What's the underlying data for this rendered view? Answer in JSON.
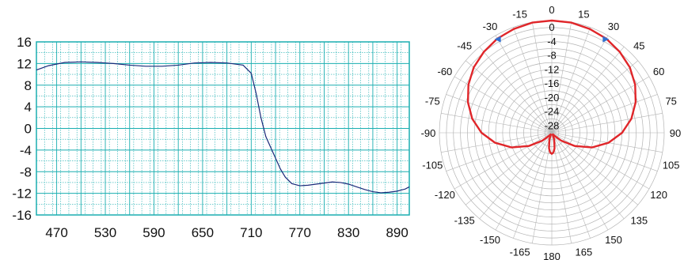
{
  "chart_data": [
    {
      "type": "line",
      "title": "",
      "xlabel": "",
      "ylabel": "",
      "xlim": [
        445,
        905
      ],
      "ylim": [
        -16,
        16
      ],
      "xticks": [
        470,
        530,
        590,
        650,
        710,
        770,
        830,
        890
      ],
      "yticks": [
        16,
        12,
        8,
        4,
        0,
        -4,
        -8,
        -12,
        -16
      ],
      "xtick_labels": [
        "470",
        "530",
        "590",
        "650",
        "710",
        "770",
        "830",
        "890"
      ],
      "ytick_labels": [
        "16",
        "12",
        "8",
        "4",
        "0",
        "-4",
        "-8",
        "-12",
        "-16"
      ],
      "grid": true,
      "colors": {
        "line": "#1a2a7a",
        "grid": "#1aaeb0",
        "frame": "#1aaeb0"
      },
      "series": [
        {
          "x": [
            445,
            460,
            480,
            500,
            520,
            540,
            560,
            580,
            600,
            620,
            640,
            660,
            680,
            700,
            710,
            716,
            722,
            728,
            734,
            740,
            746,
            752,
            760,
            770,
            780,
            790,
            800,
            810,
            820,
            830,
            840,
            850,
            860,
            870,
            880,
            890,
            900,
            905
          ],
          "y": [
            10.8,
            11.6,
            12.2,
            12.3,
            12.2,
            12.0,
            11.7,
            11.5,
            11.5,
            11.7,
            12.1,
            12.2,
            12.1,
            11.7,
            10.2,
            6.5,
            2.0,
            -1.5,
            -3.5,
            -5.5,
            -7.5,
            -9.0,
            -10.2,
            -10.6,
            -10.5,
            -10.3,
            -10.1,
            -9.9,
            -10.0,
            -10.3,
            -10.8,
            -11.3,
            -11.7,
            -11.9,
            -11.8,
            -11.6,
            -11.2,
            -10.8
          ]
        }
      ]
    },
    {
      "type": "polar",
      "title": "",
      "angle_labels": [
        "0",
        "15",
        "30",
        "45",
        "60",
        "75",
        "90",
        "105",
        "120",
        "135",
        "150",
        "165",
        "180",
        "-165",
        "-150",
        "-135",
        "-120",
        "-105",
        "-90",
        "-75",
        "-60",
        "-45",
        "-30",
        "-15"
      ],
      "radial_labels": [
        "0",
        "-4",
        "-8",
        "-12",
        "-16",
        "-20",
        "-24",
        "-28"
      ],
      "rlim": [
        -32,
        0
      ],
      "grid": true,
      "colors": {
        "pattern": "#e0262a",
        "grid": "#b4b4b4",
        "marker": "#2f6fd1"
      },
      "series": [
        {
          "theta": [
            0,
            10,
            20,
            30,
            40,
            50,
            60,
            70,
            80,
            90,
            100,
            110,
            120,
            130,
            140,
            150,
            160,
            170,
            175,
            180,
            185,
            190,
            200,
            210,
            220,
            230,
            240,
            250,
            260,
            270,
            280,
            290,
            300,
            310,
            320,
            330,
            340,
            350,
            360
          ],
          "r": [
            0.0,
            -0.1,
            -0.5,
            -1.0,
            -1.9,
            -3.0,
            -4.6,
            -6.6,
            -9.0,
            -12.0,
            -15.6,
            -19.8,
            -24.5,
            -28.5,
            -31.0,
            -31.6,
            -30.0,
            -27.5,
            -26.4,
            -26.0,
            -26.4,
            -27.5,
            -30.0,
            -31.6,
            -31.0,
            -28.5,
            -24.5,
            -19.8,
            -15.6,
            -12.0,
            -9.0,
            -6.6,
            -4.6,
            -3.0,
            -1.9,
            -1.0,
            -0.5,
            -0.1,
            0.0
          ]
        }
      ],
      "markers": [
        {
          "theta": -30,
          "r": -1.2,
          "shape": "triangle"
        },
        {
          "theta": 30,
          "r": -1.2,
          "shape": "triangle"
        }
      ]
    }
  ]
}
